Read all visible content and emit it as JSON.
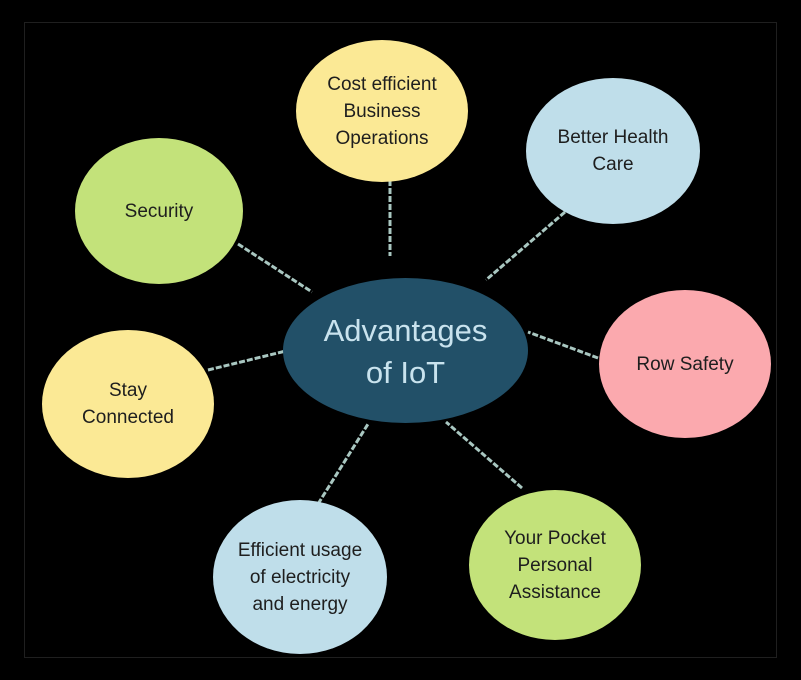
{
  "diagram": {
    "center": {
      "label": "Advantages\nof IoT",
      "fill": "#225068",
      "text_color": "#c9e3ee"
    },
    "nodes": [
      {
        "id": "cost",
        "label": "Cost efficient\nBusiness\nOperations",
        "fill": "#fbe995"
      },
      {
        "id": "health",
        "label": "Better Health\nCare",
        "fill": "#bfdeea"
      },
      {
        "id": "row-safety",
        "label": "Row Safety",
        "fill": "#fba9ae"
      },
      {
        "id": "pocket",
        "label": "Your Pocket\nPersonal\nAssistance",
        "fill": "#c3e27a"
      },
      {
        "id": "electricity",
        "label": "Efficient usage\nof electricity\nand energy",
        "fill": "#bfdeea"
      },
      {
        "id": "connected",
        "label": "Stay\nConnected",
        "fill": "#fbe995"
      },
      {
        "id": "security",
        "label": "Security",
        "fill": "#c3e27a"
      }
    ],
    "connector_color": "#a9c7c1"
  }
}
